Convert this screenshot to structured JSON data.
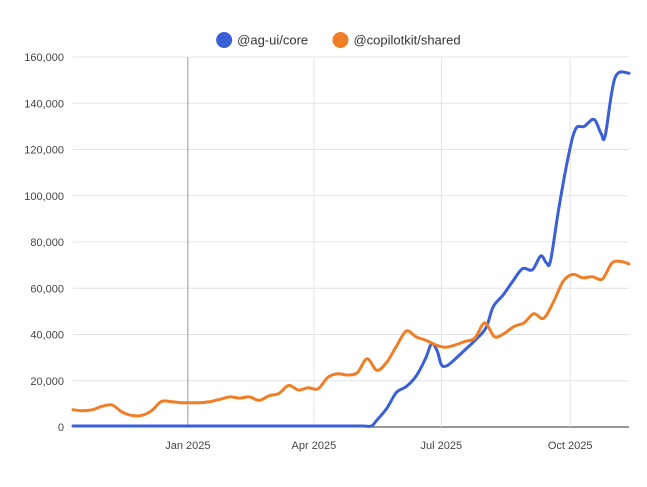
{
  "chart_data": {
    "type": "line",
    "title": "",
    "xlabel": "",
    "ylabel": "",
    "ylim": [
      0,
      160000
    ],
    "xlim": [
      "2024-10-11",
      "2025-11-12"
    ],
    "grid": true,
    "legend": "top",
    "x_ticks": [
      {
        "label": "Jan 2025",
        "date": "2025-01-01"
      },
      {
        "label": "Apr 2025",
        "date": "2025-04-01"
      },
      {
        "label": "Jul 2025",
        "date": "2025-07-01"
      },
      {
        "label": "Oct 2025",
        "date": "2025-10-01"
      }
    ],
    "y_ticks": [
      {
        "label": "0",
        "value": 0
      },
      {
        "label": "20,000",
        "value": 20000
      },
      {
        "label": "40,000",
        "value": 40000
      },
      {
        "label": "60,000",
        "value": 60000
      },
      {
        "label": "80,000",
        "value": 80000
      },
      {
        "label": "100,000",
        "value": 100000
      },
      {
        "label": "120,000",
        "value": 120000
      },
      {
        "label": "140,000",
        "value": 140000
      },
      {
        "label": "160,000",
        "value": 160000
      }
    ],
    "series": [
      {
        "name": "@ag-ui/core",
        "color": "#3b5fd6",
        "points": [
          [
            "2024-10-11",
            0
          ],
          [
            "2024-11-15",
            0
          ],
          [
            "2024-12-20",
            0
          ],
          [
            "2025-01-25",
            0
          ],
          [
            "2025-03-01",
            0
          ],
          [
            "2025-04-05",
            0
          ],
          [
            "2025-05-05",
            0
          ],
          [
            "2025-05-12",
            0
          ],
          [
            "2025-05-16",
            3000
          ],
          [
            "2025-05-23",
            8000
          ],
          [
            "2025-05-30",
            15000
          ],
          [
            "2025-06-06",
            17500
          ],
          [
            "2025-06-13",
            22000
          ],
          [
            "2025-06-20",
            30000
          ],
          [
            "2025-06-24",
            36000
          ],
          [
            "2025-06-28",
            33000
          ],
          [
            "2025-07-01",
            27000
          ],
          [
            "2025-07-05",
            26500
          ],
          [
            "2025-07-12",
            30000
          ],
          [
            "2025-07-19",
            34000
          ],
          [
            "2025-07-26",
            38000
          ],
          [
            "2025-08-02",
            43000
          ],
          [
            "2025-08-07",
            52000
          ],
          [
            "2025-08-14",
            57000
          ],
          [
            "2025-08-21",
            63000
          ],
          [
            "2025-08-28",
            68500
          ],
          [
            "2025-09-04",
            68000
          ],
          [
            "2025-09-10",
            74000
          ],
          [
            "2025-09-14",
            71000
          ],
          [
            "2025-09-17",
            72000
          ],
          [
            "2025-09-23",
            95000
          ],
          [
            "2025-09-30",
            118000
          ],
          [
            "2025-10-05",
            129000
          ],
          [
            "2025-10-11",
            130000
          ],
          [
            "2025-10-18",
            133000
          ],
          [
            "2025-10-23",
            127000
          ],
          [
            "2025-10-26",
            126000
          ],
          [
            "2025-11-02",
            151000
          ],
          [
            "2025-11-12",
            153000
          ]
        ]
      },
      {
        "name": "@copilotkit/shared",
        "color": "#f07e26",
        "points": [
          [
            "2024-10-11",
            7500
          ],
          [
            "2024-10-18",
            7000
          ],
          [
            "2024-10-25",
            7500
          ],
          [
            "2024-11-01",
            9000
          ],
          [
            "2024-11-08",
            9500
          ],
          [
            "2024-11-15",
            6500
          ],
          [
            "2024-11-22",
            5000
          ],
          [
            "2024-11-29",
            5000
          ],
          [
            "2024-12-06",
            7000
          ],
          [
            "2024-12-13",
            11000
          ],
          [
            "2024-12-20",
            11000
          ],
          [
            "2024-12-27",
            10500
          ],
          [
            "2025-01-03",
            10500
          ],
          [
            "2025-01-10",
            10500
          ],
          [
            "2025-01-17",
            11000
          ],
          [
            "2025-01-24",
            12000
          ],
          [
            "2025-01-31",
            13000
          ],
          [
            "2025-02-07",
            12500
          ],
          [
            "2025-02-14",
            13000
          ],
          [
            "2025-02-21",
            11500
          ],
          [
            "2025-02-28",
            13500
          ],
          [
            "2025-03-07",
            14500
          ],
          [
            "2025-03-14",
            18000
          ],
          [
            "2025-03-21",
            16000
          ],
          [
            "2025-03-28",
            17000
          ],
          [
            "2025-04-04",
            16500
          ],
          [
            "2025-04-11",
            21500
          ],
          [
            "2025-04-18",
            23000
          ],
          [
            "2025-04-25",
            22500
          ],
          [
            "2025-05-02",
            23500
          ],
          [
            "2025-05-09",
            29500
          ],
          [
            "2025-05-16",
            24500
          ],
          [
            "2025-05-23",
            28000
          ],
          [
            "2025-05-30",
            35000
          ],
          [
            "2025-06-06",
            41500
          ],
          [
            "2025-06-13",
            39000
          ],
          [
            "2025-06-20",
            37500
          ],
          [
            "2025-06-27",
            35500
          ],
          [
            "2025-07-04",
            34500
          ],
          [
            "2025-07-11",
            35500
          ],
          [
            "2025-07-18",
            37000
          ],
          [
            "2025-07-25",
            38500
          ],
          [
            "2025-08-01",
            45000
          ],
          [
            "2025-08-08",
            39000
          ],
          [
            "2025-08-15",
            40500
          ],
          [
            "2025-08-22",
            43500
          ],
          [
            "2025-08-29",
            45000
          ],
          [
            "2025-09-05",
            49000
          ],
          [
            "2025-09-12",
            47000
          ],
          [
            "2025-09-19",
            54000
          ],
          [
            "2025-09-26",
            63000
          ],
          [
            "2025-10-03",
            66000
          ],
          [
            "2025-10-10",
            64500
          ],
          [
            "2025-10-17",
            65000
          ],
          [
            "2025-10-24",
            64000
          ],
          [
            "2025-10-31",
            71000
          ],
          [
            "2025-11-07",
            71500
          ],
          [
            "2025-11-12",
            70500
          ]
        ]
      }
    ]
  }
}
